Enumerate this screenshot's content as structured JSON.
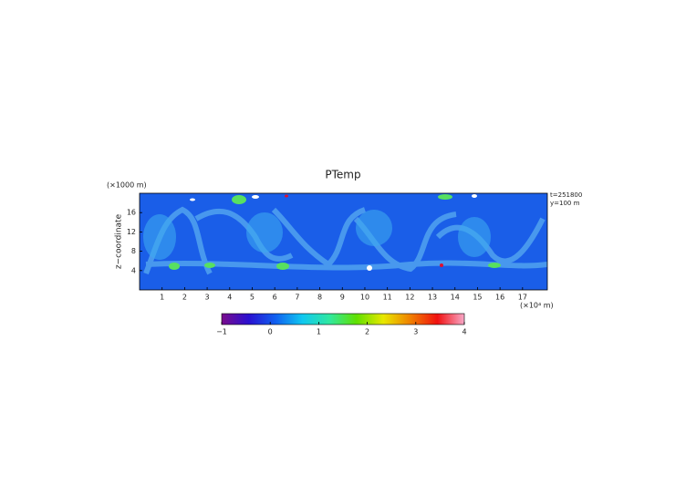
{
  "chart_data": {
    "type": "heatmap",
    "title": "PTemp",
    "y_unit": "(×1000 m)",
    "y_label": "z−coordinate",
    "x_unit": "(×10⁴ m)",
    "annotations": [
      "t=251800",
      "y=100 m"
    ],
    "xlim": [
      0,
      18.1
    ],
    "xticks": [
      1,
      2,
      3,
      4,
      5,
      6,
      7,
      8,
      9,
      10,
      11,
      12,
      13,
      14,
      15,
      16,
      17
    ],
    "ylim": [
      0,
      20
    ],
    "yticks": [
      4,
      8,
      12,
      16
    ],
    "clim": [
      -1,
      4
    ],
    "cticks": [
      {
        "value": -1,
        "label": "−1"
      },
      0,
      1,
      2,
      3,
      4
    ],
    "colormap": [
      "#7a0c8c",
      "#2a10d0",
      "#1060f0",
      "#10c8f0",
      "#30e8a0",
      "#60e000",
      "#e8e800",
      "#f08000",
      "#f01010",
      "#f8a8c8"
    ]
  }
}
